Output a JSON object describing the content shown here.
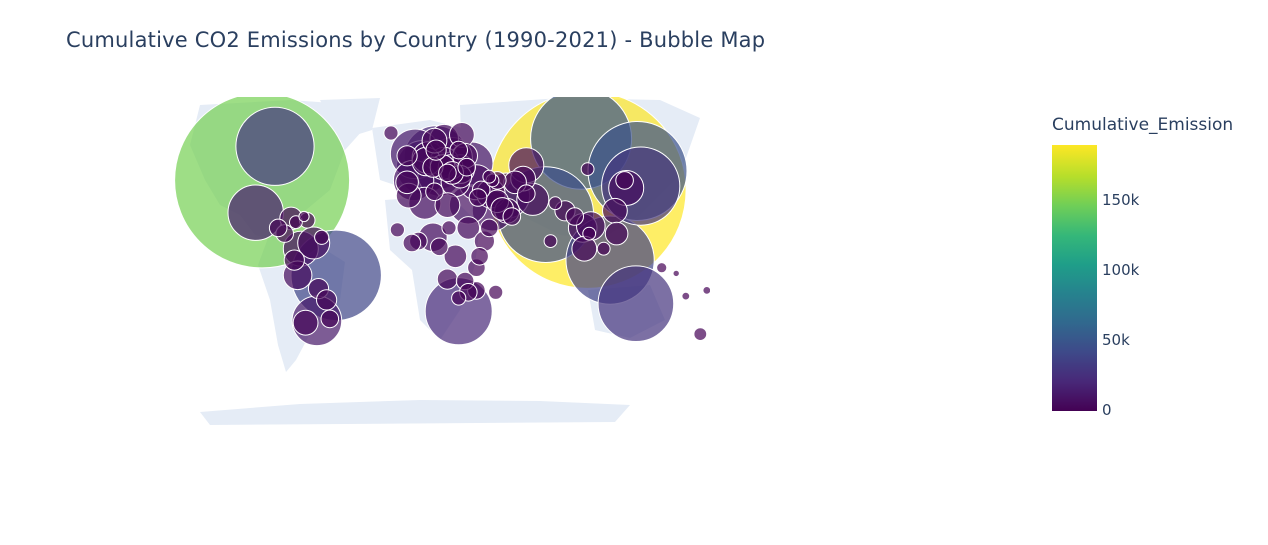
{
  "title": "Cumulative CO2 Emissions by Country (1990-2021) - Bubble Map",
  "colorbar": {
    "title": "Cumulative_Emission",
    "min": 0,
    "max": 190000,
    "ticks": [
      {
        "label": "150k",
        "value": 150000
      },
      {
        "label": "100k",
        "value": 100000
      },
      {
        "label": "50k",
        "value": 50000
      },
      {
        "label": "0",
        "value": 0
      }
    ],
    "colorscale": "Viridis",
    "colors": [
      "#440154",
      "#482878",
      "#3e4989",
      "#31688e",
      "#26828e",
      "#1f9e89",
      "#35b779",
      "#6ece58",
      "#b5de2b",
      "#fde725"
    ]
  },
  "colors": {
    "land": "#e5ecf6",
    "text": "#2a3f5f",
    "bubble_outline": "#ffffff"
  },
  "chart_data": {
    "type": "bubble-map",
    "projection": "equirectangular",
    "size_field": "Cumulative_Emissions",
    "color_field": "Cumulative_Emissions",
    "points": [
      {
        "lon": -98,
        "lat": 40,
        "value": 150000
      },
      {
        "lon": 104,
        "lat": 35,
        "value": 190000
      },
      {
        "lon": -90,
        "lat": 58,
        "value": 30000
      },
      {
        "lon": 100,
        "lat": 62,
        "value": 50000
      },
      {
        "lon": 78,
        "lat": 22,
        "value": 45000
      },
      {
        "lon": 135,
        "lat": 45,
        "value": 48000
      },
      {
        "lon": 137,
        "lat": 37,
        "value": 30000
      },
      {
        "lon": 118,
        "lat": -2,
        "value": 38000
      },
      {
        "lon": -52,
        "lat": -10,
        "value": 40000
      },
      {
        "lon": 134,
        "lat": -25,
        "value": 28000
      },
      {
        "lon": 24,
        "lat": -29,
        "value": 22000
      },
      {
        "lon": -102,
        "lat": 23,
        "value": 15000
      },
      {
        "lon": 10,
        "lat": 52,
        "value": 20000
      },
      {
        "lon": 2,
        "lat": 47,
        "value": 14000
      },
      {
        "lon": -3,
        "lat": 54,
        "value": 12000
      },
      {
        "lon": 54,
        "lat": 32,
        "value": 10000
      },
      {
        "lon": 45,
        "lat": 24,
        "value": 8000
      },
      {
        "lon": 35,
        "lat": 39,
        "value": 6000
      },
      {
        "lon": -64,
        "lat": -34,
        "value": 12000
      },
      {
        "lon": -71,
        "lat": -35,
        "value": 3000
      },
      {
        "lon": -74,
        "lat": 4,
        "value": 6000
      },
      {
        "lon": -66,
        "lat": 7,
        "value": 5000
      },
      {
        "lon": -76,
        "lat": -10,
        "value": 4000
      },
      {
        "lon": -63,
        "lat": -17,
        "value": 2000
      },
      {
        "lon": -58,
        "lat": -23,
        "value": 2000
      },
      {
        "lon": -56,
        "lat": -33,
        "value": 1500
      },
      {
        "lon": -78,
        "lat": -2,
        "value": 2000
      },
      {
        "lon": -80,
        "lat": 20,
        "value": 2500
      },
      {
        "lon": -84,
        "lat": 12,
        "value": 1500
      },
      {
        "lon": -88,
        "lat": 15,
        "value": 1500
      },
      {
        "lon": -77,
        "lat": 18,
        "value": 800
      },
      {
        "lon": -70,
        "lat": 19,
        "value": 1200
      },
      {
        "lon": -61,
        "lat": 10,
        "value": 1000
      },
      {
        "lon": -72,
        "lat": 21,
        "value": 500
      },
      {
        "lon": 20,
        "lat": 52,
        "value": 8000
      },
      {
        "lon": 32,
        "lat": 49,
        "value": 9000
      },
      {
        "lon": 15,
        "lat": 62,
        "value": 4000
      },
      {
        "lon": 26,
        "lat": 64,
        "value": 3000
      },
      {
        "lon": 9,
        "lat": 61,
        "value": 3000
      },
      {
        "lon": 12,
        "lat": 43,
        "value": 9000
      },
      {
        "lon": -4,
        "lat": 40,
        "value": 8000
      },
      {
        "lon": 22,
        "lat": 39,
        "value": 4000
      },
      {
        "lon": 19,
        "lat": 47,
        "value": 3000
      },
      {
        "lon": 25,
        "lat": 46,
        "value": 4000
      },
      {
        "lon": 15,
        "lat": 50,
        "value": 4000
      },
      {
        "lon": 5,
        "lat": 52,
        "value": 5000
      },
      {
        "lon": 4,
        "lat": 50,
        "value": 4000
      },
      {
        "lon": 14,
        "lat": 47,
        "value": 3000
      },
      {
        "lon": 8,
        "lat": 47,
        "value": 2000
      },
      {
        "lon": 10,
        "lat": 56,
        "value": 2000
      },
      {
        "lon": -8,
        "lat": 39,
        "value": 2500
      },
      {
        "lon": -8,
        "lat": 53,
        "value": 2000
      },
      {
        "lon": 28,
        "lat": 53,
        "value": 3000
      },
      {
        "lon": 24,
        "lat": 56,
        "value": 1500
      },
      {
        "lon": 25,
        "lat": 42,
        "value": 2500
      },
      {
        "lon": 20,
        "lat": 44,
        "value": 2500
      },
      {
        "lon": 17,
        "lat": 44,
        "value": 1500
      },
      {
        "lon": 29,
        "lat": 47,
        "value": 1500
      },
      {
        "lon": -18,
        "lat": 65,
        "value": 1000
      },
      {
        "lon": 3,
        "lat": 28,
        "value": 5000
      },
      {
        "lon": 30,
        "lat": 27,
        "value": 7000
      },
      {
        "lon": 17,
        "lat": 27,
        "value": 3000
      },
      {
        "lon": -7,
        "lat": 32,
        "value": 3000
      },
      {
        "lon": 9,
        "lat": 34,
        "value": 1500
      },
      {
        "lon": 8,
        "lat": 10,
        "value": 4000
      },
      {
        "lon": 30,
        "lat": 15,
        "value": 2500
      },
      {
        "lon": 40,
        "lat": 8,
        "value": 2000
      },
      {
        "lon": 22,
        "lat": 0,
        "value": 2500
      },
      {
        "lon": 35,
        "lat": -6,
        "value": 1500
      },
      {
        "lon": 37,
        "lat": 0,
        "value": 1500
      },
      {
        "lon": 17,
        "lat": -12,
        "value": 2000
      },
      {
        "lon": 35,
        "lat": -18,
        "value": 1500
      },
      {
        "lon": 28,
        "lat": -13,
        "value": 1500
      },
      {
        "lon": 30,
        "lat": -19,
        "value": 1500
      },
      {
        "lon": 24,
        "lat": -22,
        "value": 1000
      },
      {
        "lon": 47,
        "lat": -19,
        "value": 1000
      },
      {
        "lon": -1,
        "lat": 8,
        "value": 1500
      },
      {
        "lon": -5,
        "lat": 7,
        "value": 1500
      },
      {
        "lon": -14,
        "lat": 14,
        "value": 1000
      },
      {
        "lon": 12,
        "lat": 5,
        "value": 1500
      },
      {
        "lon": 18,
        "lat": 15,
        "value": 1000
      },
      {
        "lon": 43,
        "lat": 15,
        "value": 1500
      },
      {
        "lon": 44,
        "lat": 33,
        "value": 4000
      },
      {
        "lon": 38,
        "lat": 35,
        "value": 1500
      },
      {
        "lon": 36,
        "lat": 31,
        "value": 1500
      },
      {
        "lon": 48,
        "lat": 29,
        "value": 2500
      },
      {
        "lon": 51,
        "lat": 25,
        "value": 2500
      },
      {
        "lon": 54,
        "lat": 24,
        "value": 3000
      },
      {
        "lon": 57,
        "lat": 21,
        "value": 1500
      },
      {
        "lon": 66,
        "lat": 48,
        "value": 6000
      },
      {
        "lon": 64,
        "lat": 41,
        "value": 3000
      },
      {
        "lon": 59,
        "lat": 39,
        "value": 2500
      },
      {
        "lon": 48,
        "lat": 40,
        "value": 1500
      },
      {
        "lon": 45,
        "lat": 40,
        "value": 800
      },
      {
        "lon": 43,
        "lat": 42,
        "value": 800
      },
      {
        "lon": 66,
        "lat": 33,
        "value": 1500
      },
      {
        "lon": 70,
        "lat": 30,
        "value": 5000
      },
      {
        "lon": 90,
        "lat": 24,
        "value": 2000
      },
      {
        "lon": 84,
        "lat": 28,
        "value": 800
      },
      {
        "lon": 81,
        "lat": 8,
        "value": 800
      },
      {
        "lon": 96,
        "lat": 21,
        "value": 1500
      },
      {
        "lon": 101,
        "lat": 15,
        "value": 4000
      },
      {
        "lon": 106,
        "lat": 16,
        "value": 4000
      },
      {
        "lon": 105,
        "lat": 12,
        "value": 800
      },
      {
        "lon": 102,
        "lat": 4,
        "value": 3000
      },
      {
        "lon": 122,
        "lat": 12,
        "value": 2500
      },
      {
        "lon": 127,
        "lat": 40,
        "value": 1500
      },
      {
        "lon": 128,
        "lat": 36,
        "value": 6000
      },
      {
        "lon": 121,
        "lat": 24,
        "value": 3000
      },
      {
        "lon": 104,
        "lat": 46,
        "value": 800
      },
      {
        "lon": 114,
        "lat": 4,
        "value": 800
      },
      {
        "lon": 150,
        "lat": -6,
        "value": 500
      },
      {
        "lon": 174,
        "lat": -41,
        "value": 800
      },
      {
        "lon": 165,
        "lat": -21,
        "value": 300
      },
      {
        "lon": 178,
        "lat": -18,
        "value": 300
      },
      {
        "lon": 159,
        "lat": -9,
        "value": 200
      }
    ]
  }
}
